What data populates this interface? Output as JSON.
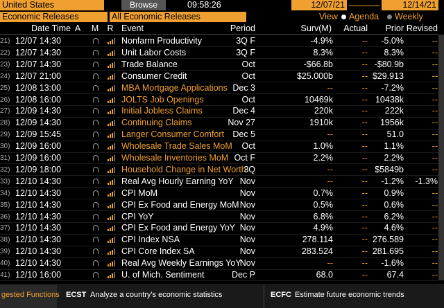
{
  "toolbar": {
    "country": "United States",
    "browse": "Browse",
    "clock": "09:58:26",
    "start_date": "12/07/21",
    "end_date": "12/14/21",
    "category": "Economic Releases",
    "filter": "All Economic Releases",
    "view_label": "View",
    "view_agenda": "Agenda",
    "view_weekly": "Weekly"
  },
  "table": {
    "headers": [
      "Date Time",
      "A",
      "M",
      "R",
      "Event",
      "Period",
      "Surv(M)",
      "Actual",
      "Prior",
      "Revised"
    ],
    "rows": [
      {
        "no": "21)",
        "time": "12/07 14:30",
        "event": "Nonfarm Productivity",
        "period": "3Q F",
        "surv": "-4.9%",
        "actual": "--",
        "prior": "-5.0%",
        "revised": "--",
        "color": "#ffffff"
      },
      {
        "no": "22)",
        "time": "12/07 14:30",
        "event": "Unit Labor Costs",
        "period": "3Q F",
        "surv": "8.3%",
        "actual": "--",
        "prior": "8.3%",
        "revised": "--",
        "color": "#ffffff"
      },
      {
        "no": "23)",
        "time": "12/07 14:30",
        "event": "Trade Balance",
        "period": "Oct",
        "surv": "-$66.8b",
        "actual": "--",
        "prior": "-$80.9b",
        "revised": "--",
        "color": "#ffffff"
      },
      {
        "no": "24)",
        "time": "12/07 21:00",
        "event": "Consumer Credit",
        "period": "Oct",
        "surv": "$25.000b",
        "actual": "--",
        "prior": "$29.913",
        "revised": "--",
        "color": "#ffffff"
      },
      {
        "no": "25)",
        "time": "12/08 13:00",
        "event": "MBA Mortgage Applications",
        "period": "Dec 3",
        "surv": "--",
        "actual": "--",
        "prior": "-7.2%",
        "revised": "--",
        "color": "#f0a030"
      },
      {
        "no": "26)",
        "time": "12/08 16:00",
        "event": "JOLTS Job Openings",
        "period": "Oct",
        "surv": "10469k",
        "actual": "--",
        "prior": "10438k",
        "revised": "--",
        "color": "#f0a030"
      },
      {
        "no": "27)",
        "time": "12/09 14:30",
        "event": "Initial Jobless Claims",
        "period": "Dec 4",
        "surv": "220k",
        "actual": "--",
        "prior": "222k",
        "revised": "--",
        "color": "#f0a030"
      },
      {
        "no": "28)",
        "time": "12/09 14:30",
        "event": "Continuing Claims",
        "period": "Nov 27",
        "surv": "1910k",
        "actual": "--",
        "prior": "1956k",
        "revised": "--",
        "color": "#f0a030"
      },
      {
        "no": "29)",
        "time": "12/09 15:45",
        "event": "Langer Consumer Comfort",
        "period": "Dec 5",
        "surv": "--",
        "actual": "--",
        "prior": "51.0",
        "revised": "--",
        "color": "#f0a030"
      },
      {
        "no": "30)",
        "time": "12/09 16:00",
        "event": "Wholesale Trade Sales MoM",
        "period": "Oct",
        "surv": "1.0%",
        "actual": "--",
        "prior": "1.1%",
        "revised": "--",
        "color": "#f0a030"
      },
      {
        "no": "31)",
        "time": "12/09 16:00",
        "event": "Wholesale Inventories MoM",
        "period": "Oct F",
        "surv": "2.2%",
        "actual": "--",
        "prior": "2.2%",
        "revised": "--",
        "color": "#f0a030"
      },
      {
        "no": "32)",
        "time": "12/09 18:00",
        "event": "Household Change in Net Worth",
        "period": "3Q",
        "surv": "--",
        "actual": "--",
        "prior": "$5849b",
        "revised": "--",
        "color": "#f0a030"
      },
      {
        "no": "33)",
        "time": "12/10 14:30",
        "event": "Real Avg Hourly Earning YoY",
        "period": "Nov",
        "surv": "--",
        "actual": "--",
        "prior": "-1.2%",
        "revised": "-1.3%",
        "color": "#ffffff"
      },
      {
        "no": "34)",
        "time": "12/10 14:30",
        "event": "CPI MoM",
        "period": "Nov",
        "surv": "0.7%",
        "actual": "--",
        "prior": "0.9%",
        "revised": "--",
        "color": "#ffffff"
      },
      {
        "no": "35)",
        "time": "12/10 14:30",
        "event": "CPI Ex Food and Energy MoM",
        "period": "Nov",
        "surv": "0.5%",
        "actual": "--",
        "prior": "0.6%",
        "revised": "--",
        "color": "#ffffff"
      },
      {
        "no": "36)",
        "time": "12/10 14:30",
        "event": "CPI YoY",
        "period": "Nov",
        "surv": "6.8%",
        "actual": "--",
        "prior": "6.2%",
        "revised": "--",
        "color": "#ffffff"
      },
      {
        "no": "37)",
        "time": "12/10 14:30",
        "event": "CPI Ex Food and Energy YoY",
        "period": "Nov",
        "surv": "4.9%",
        "actual": "--",
        "prior": "4.6%",
        "revised": "--",
        "color": "#ffffff"
      },
      {
        "no": "38)",
        "time": "12/10 14:30",
        "event": "CPI Index NSA",
        "period": "Nov",
        "surv": "278.114",
        "actual": "--",
        "prior": "276.589",
        "revised": "--",
        "color": "#ffffff"
      },
      {
        "no": "39)",
        "time": "12/10 14:30",
        "event": "CPI Core Index SA",
        "period": "Nov",
        "surv": "283.524",
        "actual": "--",
        "prior": "281.695",
        "revised": "--",
        "color": "#ffffff"
      },
      {
        "no": "40)",
        "time": "12/10 14:30",
        "event": "Real Avg Weekly Earnings YoY",
        "period": "Nov",
        "surv": "--",
        "actual": "--",
        "prior": "-1.6%",
        "revised": "--",
        "color": "#ffffff"
      },
      {
        "no": "41)",
        "time": "12/10 16:00",
        "event": "U. of Mich. Sentiment",
        "period": "Dec P",
        "surv": "68.0",
        "actual": "--",
        "prior": "67.4",
        "revised": "--",
        "color": "#ffffff"
      }
    ]
  },
  "footer": {
    "suggested": "gested Functions",
    "f1_code": "ECST",
    "f1_desc": "Analyze a country's economic statistics",
    "f2_code": "ECFC",
    "f2_desc": "Estimate future economic trends"
  }
}
